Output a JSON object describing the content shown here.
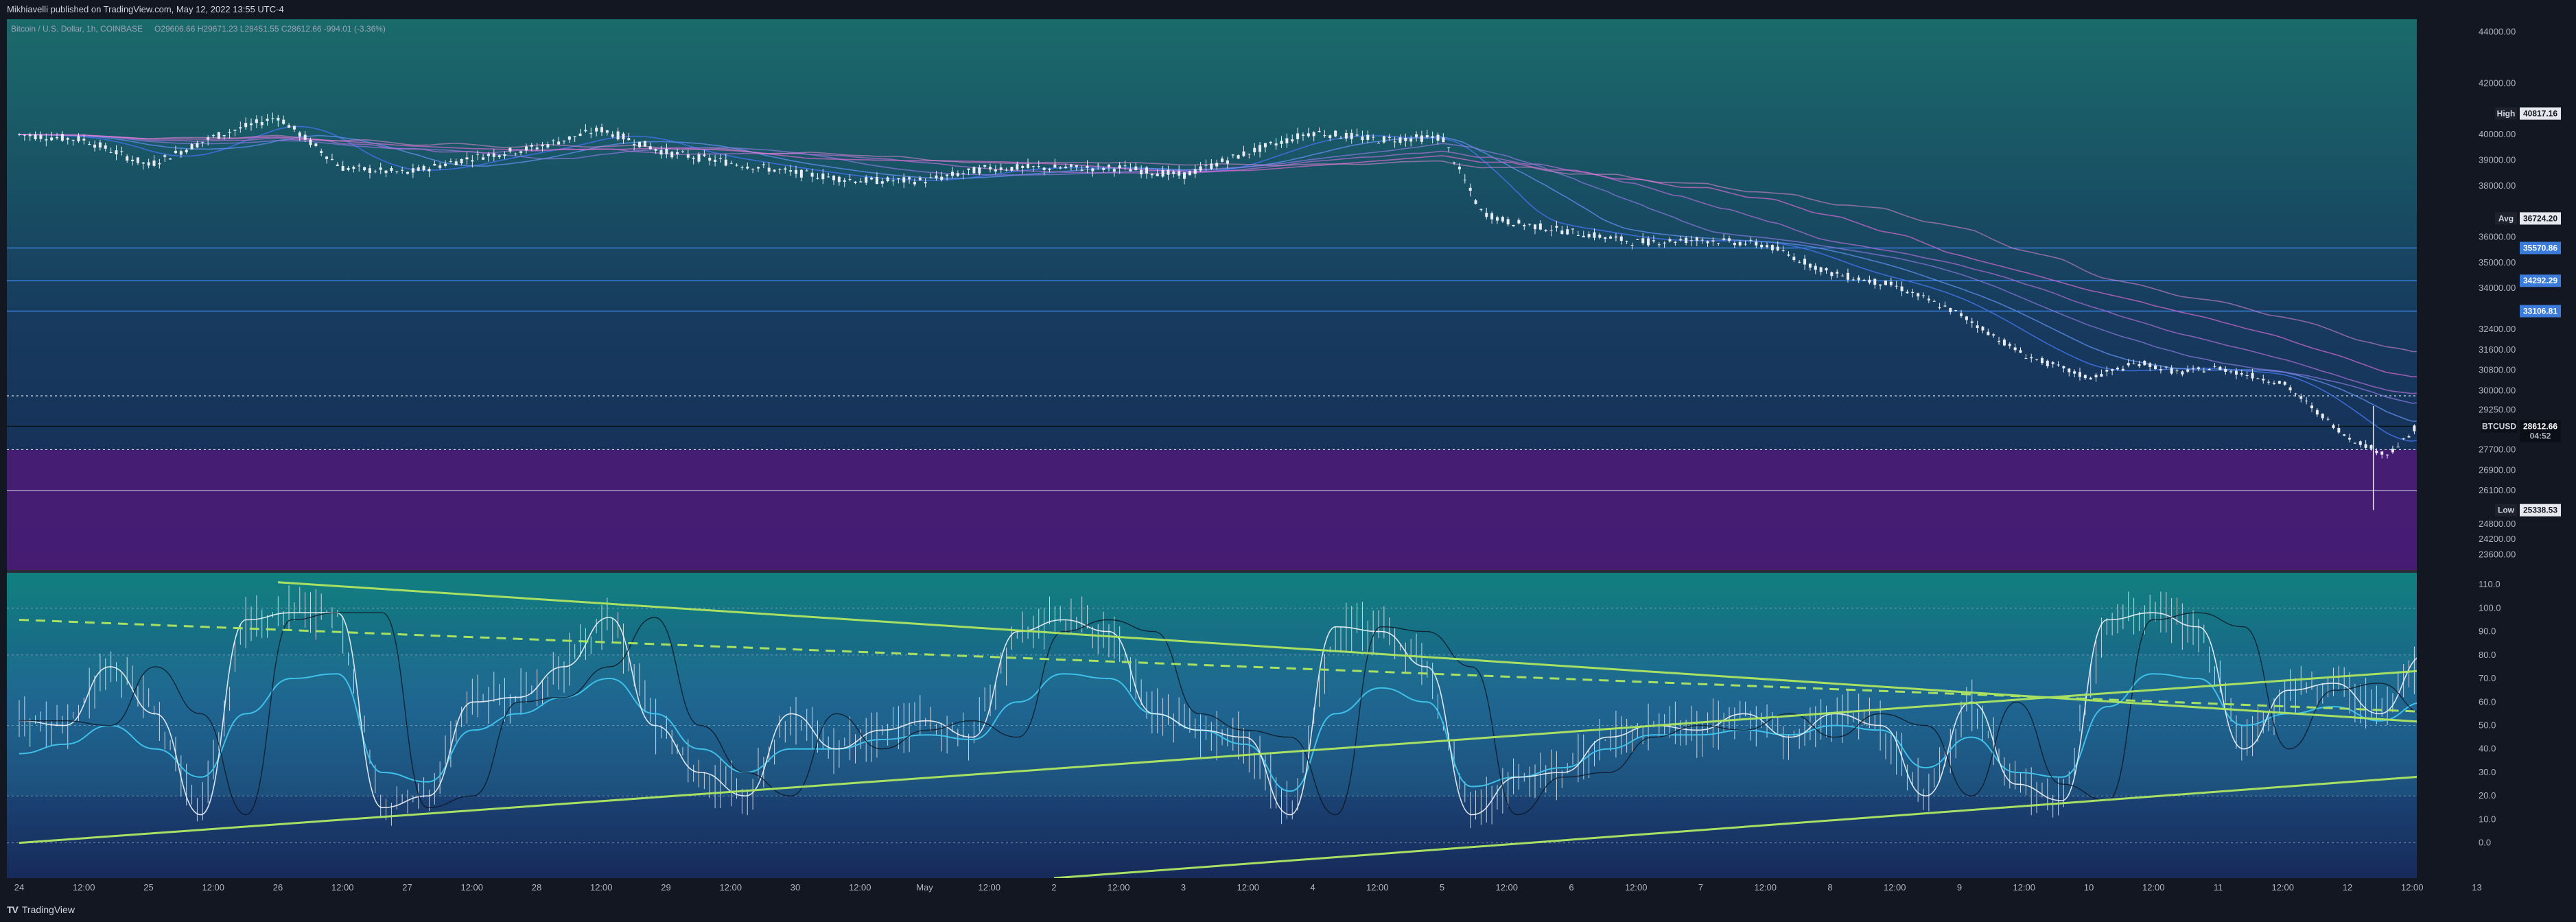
{
  "header": {
    "publisher": "Mikhiavelli published on TradingView.com, May 12, 2022 13:55 UTC-4"
  },
  "legend": {
    "symbol": "Bitcoin / U.S. Dollar, 1h, COINBASE",
    "ohlc": "O29606.66  H29671.23  L28451.55  C28612.66  -994.01 (-3.36%)"
  },
  "footer": {
    "brand": "TradingView"
  },
  "colors": {
    "price_bg_top": "#1a6b6b",
    "price_bg_mid": "#173a5e",
    "purple_zone": "#4d1a78",
    "osc_bg_top": "#11807f",
    "osc_bg_bottom": "#172a5a",
    "trend_line": "#a8e063",
    "ribbon_blue": "#3f6fe0",
    "ribbon_pink": "#d86bd0",
    "candle": "#e8ecf2"
  },
  "chart_data": [
    {
      "type": "line",
      "title": "",
      "price_scale": {
        "ylim": [
          23000,
          44500
        ],
        "ticks": [
          44000,
          42000,
          40000,
          39000,
          38000,
          36000,
          35000,
          34000,
          32400,
          31600,
          30800,
          30000,
          29250,
          27700,
          26900,
          26100,
          24800,
          24200,
          23600
        ]
      },
      "time_axis": {
        "labels": [
          "24",
          "12:00",
          "25",
          "12:00",
          "26",
          "12:00",
          "27",
          "12:00",
          "28",
          "12:00",
          "29",
          "12:00",
          "30",
          "12:00",
          "May",
          "12:00",
          "2",
          "12:00",
          "3",
          "12:00",
          "4",
          "12:00",
          "5",
          "12:00",
          "6",
          "12:00",
          "7",
          "12:00",
          "8",
          "12:00",
          "9",
          "12:00",
          "10",
          "12:00",
          "11",
          "12:00",
          "12",
          "12:00",
          "13"
        ],
        "label_positions": [
          0,
          0.5,
          1,
          1.5,
          2,
          2.5,
          3,
          3.5,
          4,
          4.5,
          5,
          5.5,
          6,
          6.5,
          7,
          7.5,
          8,
          8.5,
          9,
          9.5,
          10,
          10.5,
          11,
          11.5,
          12,
          12.5,
          13,
          13.5,
          14,
          14.5,
          15,
          15.5,
          16,
          16.5,
          17,
          17.5,
          18,
          18.5,
          19
        ]
      },
      "price_series": {
        "x_days": [
          0,
          0.5,
          1,
          1.5,
          2,
          2.5,
          3,
          3.5,
          4,
          4.5,
          5,
          5.5,
          6,
          6.5,
          7,
          7.5,
          8,
          8.5,
          9,
          9.5,
          10,
          10.5,
          11,
          11.3,
          11.5,
          12,
          12.5,
          13,
          13.5,
          14,
          14.5,
          15,
          15.5,
          16,
          16.4,
          16.7,
          17,
          17.5,
          18,
          18.3,
          18.5,
          18.6
        ],
        "close": [
          40000,
          39800,
          38800,
          39900,
          40700,
          38700,
          38500,
          39100,
          39500,
          40200,
          39300,
          38900,
          38500,
          38200,
          38200,
          38700,
          38700,
          38700,
          38400,
          39300,
          40100,
          39800,
          39900,
          37000,
          36600,
          36200,
          35800,
          35900,
          35700,
          34600,
          34100,
          33000,
          31400,
          30500,
          31100,
          30700,
          30900,
          30300,
          28200,
          27500,
          28300,
          29700
        ]
      },
      "levels": {
        "high": 40817.16,
        "avg": 36724.2,
        "low": 25338.53,
        "last": 28612.66,
        "dotted_resistance": 29800,
        "dotted_support": 27700,
        "support_line": 26100,
        "blue_levels": [
          35570.86,
          34292.29,
          33106.81
        ]
      },
      "purple_zone": [
        23000,
        27700
      ],
      "price_tags": {
        "high_label": "High",
        "high_value": "40817.16",
        "avg_label": "Avg",
        "avg_value": "36724.20",
        "low_label": "Low",
        "low_value": "25338.53",
        "level1": "35570.86",
        "level2": "34292.29",
        "level3": "33106.81",
        "symbol": "BTCUSD",
        "last": "28612.66",
        "countdown": "04:52"
      }
    },
    {
      "type": "line",
      "title": "",
      "ylim": [
        -15,
        115
      ],
      "ticks": [
        110.0,
        100.0,
        90.0,
        80.0,
        70.0,
        60.0,
        50.0,
        40.0,
        30.0,
        20.0,
        10.0,
        0.0
      ],
      "guides": [
        100,
        80,
        50,
        20,
        0
      ],
      "fast_series": [
        52,
        50,
        75,
        55,
        12,
        95,
        98,
        98,
        15,
        20,
        60,
        62,
        75,
        96,
        50,
        30,
        20,
        55,
        40,
        48,
        52,
        45,
        90,
        95,
        90,
        55,
        48,
        45,
        12,
        92,
        90,
        75,
        12,
        28,
        30,
        45,
        50,
        48,
        55,
        45,
        55,
        50,
        20,
        60,
        25,
        18,
        95,
        98,
        92,
        40,
        65,
        68,
        55,
        80
      ],
      "slow_series": [
        38,
        42,
        50,
        40,
        28,
        55,
        70,
        72,
        30,
        26,
        48,
        55,
        62,
        70,
        55,
        40,
        30,
        40,
        40,
        44,
        46,
        44,
        60,
        72,
        70,
        55,
        48,
        42,
        22,
        55,
        66,
        60,
        24,
        28,
        32,
        40,
        46,
        46,
        48,
        46,
        50,
        48,
        32,
        45,
        30,
        28,
        58,
        72,
        70,
        50,
        55,
        58,
        52,
        60
      ],
      "trendlines": [
        {
          "style": "solid",
          "points": [
            [
              0,
              0
            ],
            [
              19,
              75
            ]
          ]
        },
        {
          "style": "solid",
          "points": [
            [
              2.0,
              111
            ],
            [
              19,
              50
            ]
          ]
        },
        {
          "style": "dashed",
          "points": [
            [
              0,
              95
            ],
            [
              19,
              55
            ]
          ]
        },
        {
          "style": "solid",
          "points": [
            [
              8.0,
              -15
            ],
            [
              19,
              30
            ]
          ]
        }
      ]
    }
  ]
}
